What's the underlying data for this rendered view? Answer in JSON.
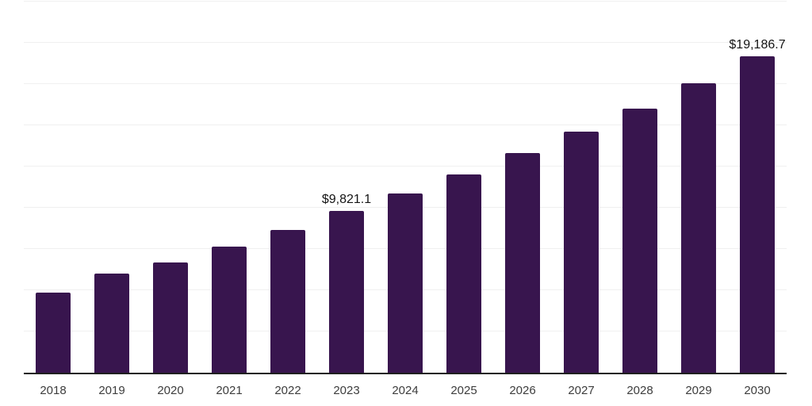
{
  "chart_data": {
    "type": "bar",
    "title": "",
    "xlabel": "",
    "ylabel": "",
    "categories": [
      "2018",
      "2019",
      "2020",
      "2021",
      "2022",
      "2023",
      "2024",
      "2025",
      "2026",
      "2027",
      "2028",
      "2029",
      "2030"
    ],
    "values": [
      4850,
      6010,
      6680,
      7660,
      8660,
      9821.1,
      10890,
      12000,
      13300,
      14620,
      16020,
      17560,
      19186.7
    ],
    "value_labels": {
      "2023": "$9,821.1",
      "2030": "$19,186.7"
    },
    "ylim": [
      0,
      22500
    ],
    "gridline_step": 2500,
    "grid": "horizontal",
    "legend_position": "none",
    "y_axis_tick_labels_visible": false
  },
  "style": {
    "bar_color": "#38154e",
    "gridline_color": "#f0f0f0",
    "axis_color": "#1f1f1f",
    "background_color": "#ffffff",
    "year_label_color": "#3d3d3d",
    "value_label_color": "#141414"
  }
}
